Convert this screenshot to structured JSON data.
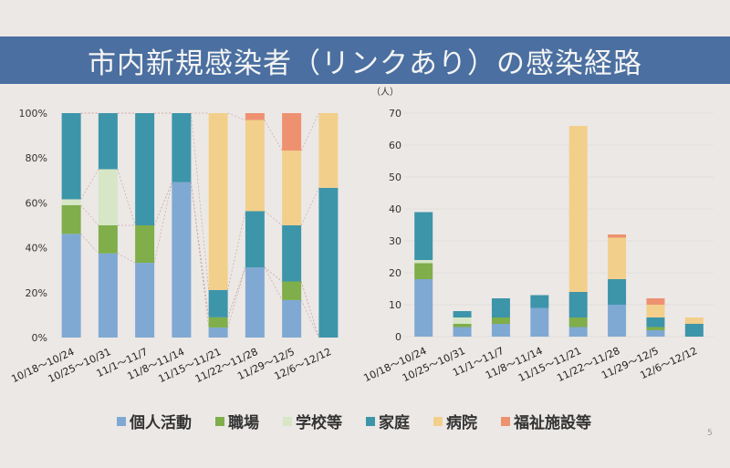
{
  "title": "市内新規感染者（リンクあり）の感染経路",
  "page_number": "5",
  "legend": [
    {
      "label": "個人活動",
      "color": "#7fa9d2"
    },
    {
      "label": "職場",
      "color": "#7fae4a"
    },
    {
      "label": "学校等",
      "color": "#d6e6c6"
    },
    {
      "label": "家庭",
      "color": "#3d95aa"
    },
    {
      "label": "病院",
      "color": "#f3cf8c"
    },
    {
      "label": "福祉施設等",
      "color": "#ee9170"
    }
  ],
  "chart_data": [
    {
      "type": "bar",
      "stacked": "percent",
      "title": "",
      "xlabel": "",
      "ylabel": "",
      "ylim": [
        0,
        100
      ],
      "yticks": [
        "0%",
        "20%",
        "40%",
        "60%",
        "80%",
        "100%"
      ],
      "categories": [
        "10/18～10/24",
        "10/25～10/31",
        "11/1～11/7",
        "11/8～11/14",
        "11/15～11/21",
        "11/22～11/28",
        "11/29～12/5",
        "12/6～12/12"
      ],
      "series": [
        {
          "name": "個人活動",
          "values": [
            46.2,
            37.5,
            33.3,
            69.2,
            4.5,
            31.3,
            16.7,
            0
          ]
        },
        {
          "name": "職場",
          "values": [
            12.8,
            12.5,
            16.7,
            0,
            4.5,
            0,
            8.3,
            0
          ]
        },
        {
          "name": "学校等",
          "values": [
            2.6,
            25.0,
            0,
            0,
            0,
            0,
            0,
            0
          ]
        },
        {
          "name": "家庭",
          "values": [
            38.4,
            25.0,
            50.0,
            30.8,
            12.2,
            25.0,
            25.0,
            66.7
          ]
        },
        {
          "name": "病院",
          "values": [
            0,
            0,
            0,
            0,
            78.8,
            40.6,
            33.3,
            33.3
          ]
        },
        {
          "name": "福祉施設等",
          "values": [
            0,
            0,
            0,
            0,
            0,
            3.1,
            16.7,
            0
          ]
        }
      ]
    },
    {
      "type": "bar",
      "stacked": "absolute",
      "title": "",
      "unit_label": "（人）",
      "xlabel": "",
      "ylabel": "（人）",
      "ylim": [
        0,
        70
      ],
      "yticks": [
        "0",
        "10",
        "20",
        "30",
        "40",
        "50",
        "60",
        "70"
      ],
      "categories": [
        "10/18～10/24",
        "10/25～10/31",
        "11/1～11/7",
        "11/8～11/14",
        "11/15～11/21",
        "11/22～11/28",
        "11/29～12/5",
        "12/6～12/12"
      ],
      "series": [
        {
          "name": "個人活動",
          "values": [
            18,
            3,
            4,
            9,
            3,
            10,
            2,
            0
          ]
        },
        {
          "name": "職場",
          "values": [
            5,
            1,
            2,
            0,
            3,
            0,
            1,
            0
          ]
        },
        {
          "name": "学校等",
          "values": [
            1,
            2,
            0,
            0,
            0,
            0,
            0,
            0
          ]
        },
        {
          "name": "家庭",
          "values": [
            15,
            2,
            6,
            4,
            8,
            8,
            3,
            4
          ]
        },
        {
          "name": "病院",
          "values": [
            0,
            0,
            0,
            0,
            52,
            13,
            4,
            2
          ]
        },
        {
          "name": "福祉施設等",
          "values": [
            0,
            0,
            0,
            0,
            0,
            1,
            2,
            0
          ]
        }
      ]
    }
  ]
}
